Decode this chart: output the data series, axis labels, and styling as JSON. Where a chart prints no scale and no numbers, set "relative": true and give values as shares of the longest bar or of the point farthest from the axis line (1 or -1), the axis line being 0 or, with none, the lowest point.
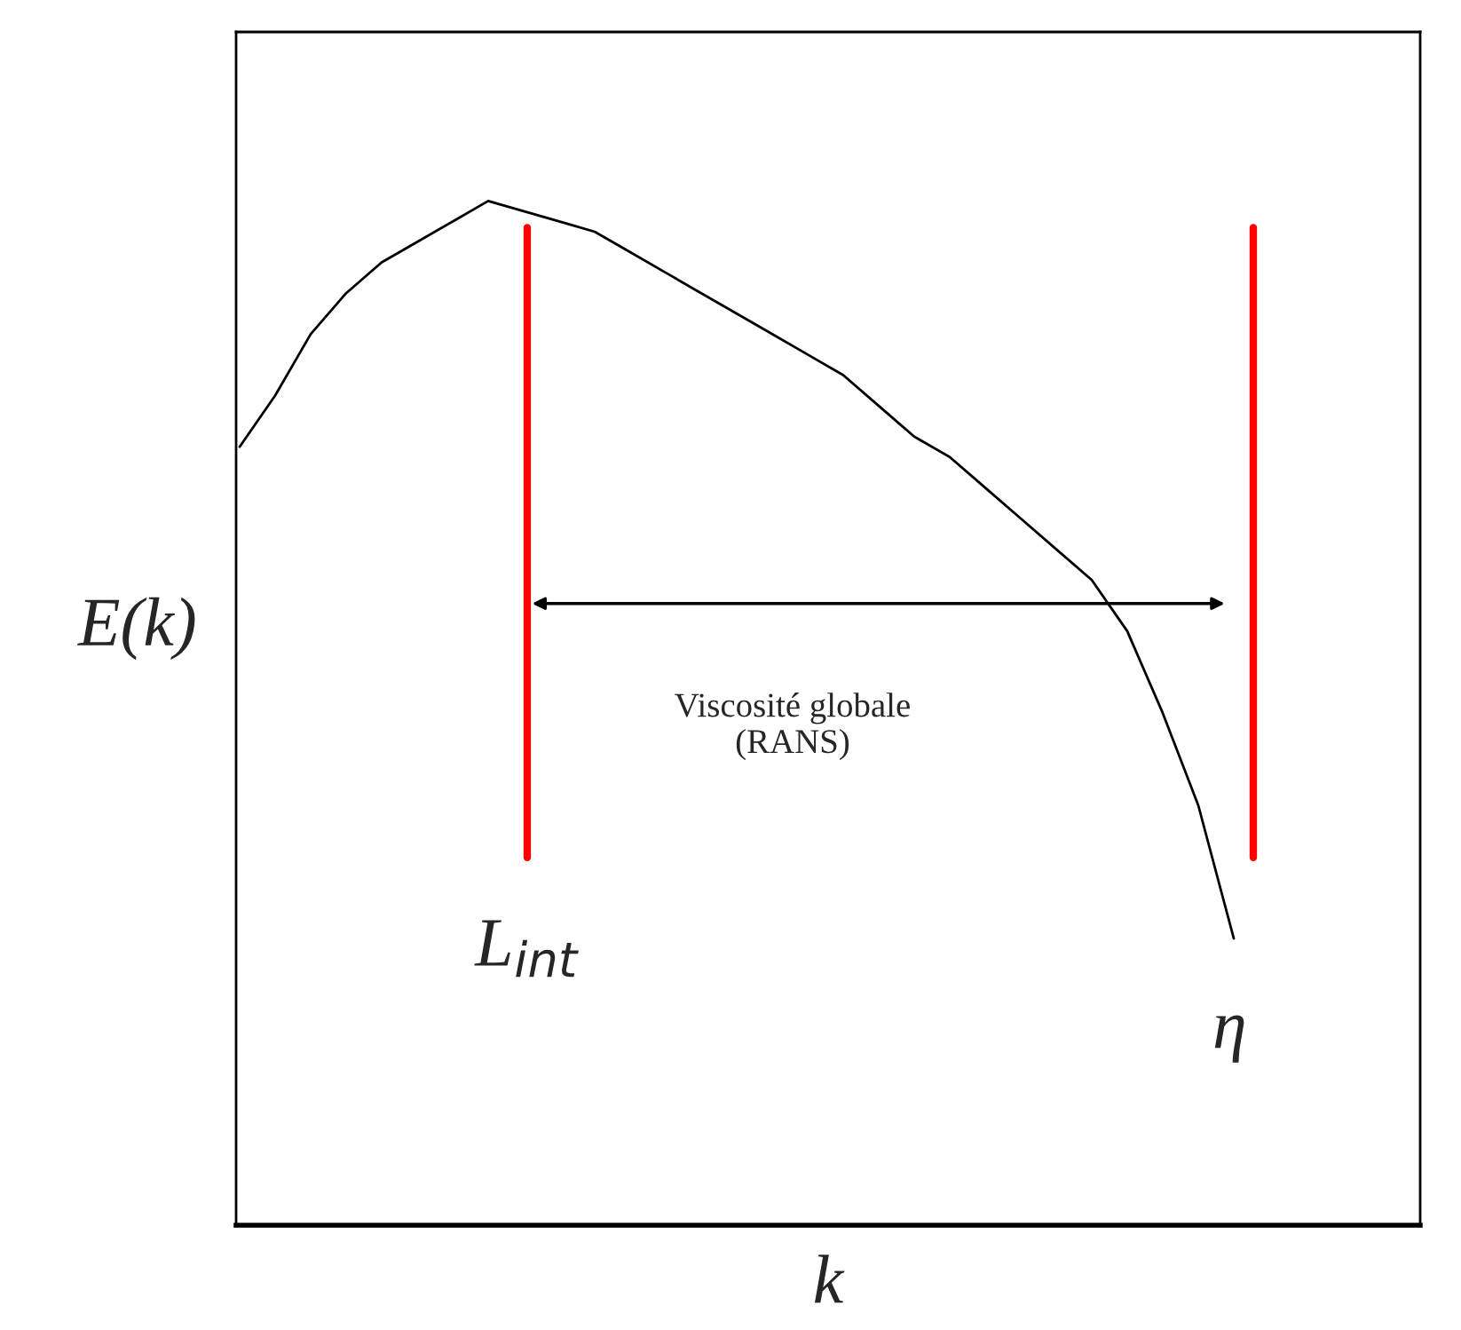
{
  "chart_data": {
    "type": "line",
    "relative": true,
    "xlabel": "k",
    "ylabel": "E(k)",
    "marker": "none",
    "line_style": "solid",
    "categories": [
      null,
      null,
      null,
      null,
      null,
      null,
      null,
      null,
      null,
      null,
      null,
      null,
      null,
      null,
      null,
      null,
      null,
      null,
      null,
      null,
      null,
      null,
      null,
      null,
      null,
      null,
      null,
      null,
      null
    ],
    "series": [
      {
        "color": "#000000",
        "values": [
          0.76,
          0.81,
          0.87,
          0.91,
          0.94,
          0.96,
          0.98,
          1.0,
          0.99,
          0.98,
          0.97,
          0.95,
          0.93,
          0.91,
          0.89,
          0.87,
          0.85,
          0.83,
          0.8,
          0.77,
          0.75,
          0.72,
          0.69,
          0.66,
          0.63,
          0.58,
          0.5,
          0.41,
          0.28
        ]
      }
    ],
    "annotations": [
      "L$_{int}$",
      "η",
      "Viscosité globale\n(RANS)"
    ]
  }
}
